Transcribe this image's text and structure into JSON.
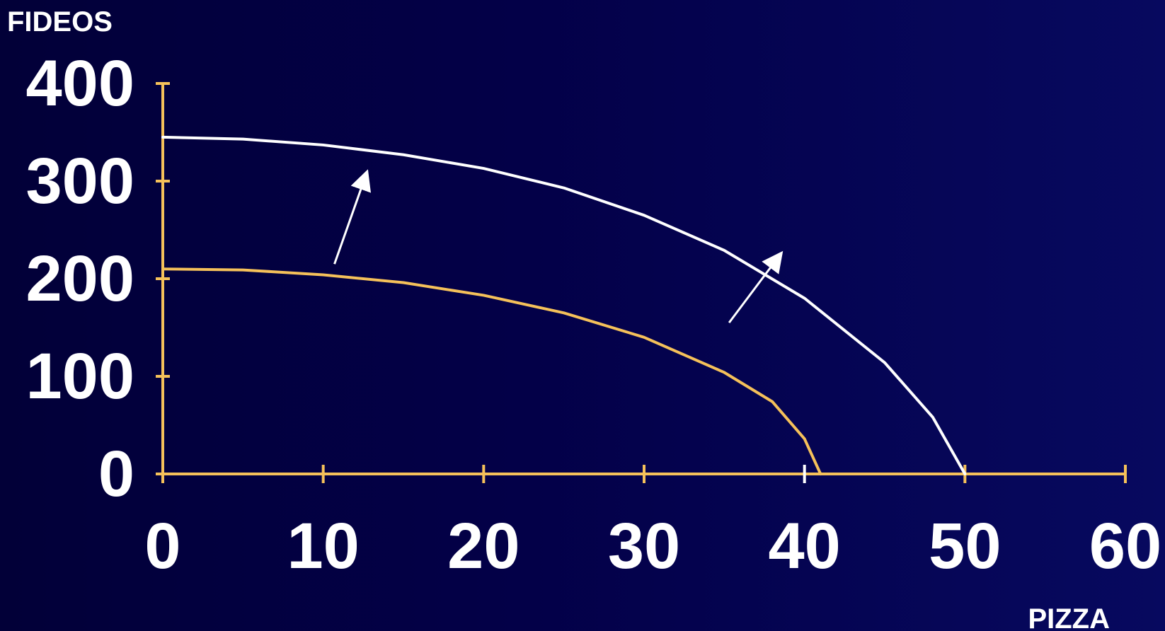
{
  "chart_data": {
    "type": "line",
    "xlabel": "PIZZA",
    "ylabel": "FIDEOS",
    "xlim": [
      0,
      60
    ],
    "ylim": [
      0,
      400
    ],
    "x_ticks": [
      "0",
      "10",
      "20",
      "30",
      "40",
      "50",
      "60"
    ],
    "y_ticks": [
      "0",
      "100",
      "200",
      "300",
      "400"
    ],
    "grid": false,
    "legend": "none",
    "axis_color": "#f5c15a",
    "series": [
      {
        "color": "#f5c15a",
        "points": [
          [
            0,
            210
          ],
          [
            5,
            209
          ],
          [
            10,
            204
          ],
          [
            15,
            196
          ],
          [
            20,
            183
          ],
          [
            25,
            165
          ],
          [
            30,
            140
          ],
          [
            35,
            104
          ],
          [
            38,
            74
          ],
          [
            40,
            36
          ],
          [
            41,
            0
          ]
        ]
      },
      {
        "color": "#ffffff",
        "points": [
          [
            0,
            345
          ],
          [
            5,
            343
          ],
          [
            10,
            337
          ],
          [
            15,
            327
          ],
          [
            20,
            313
          ],
          [
            25,
            293
          ],
          [
            30,
            265
          ],
          [
            35,
            229
          ],
          [
            40,
            180
          ],
          [
            45,
            114
          ],
          [
            48,
            58
          ],
          [
            50,
            0
          ]
        ]
      }
    ],
    "annotations": [
      {
        "type": "arrow",
        "from": [
          10.7,
          215
        ],
        "to": [
          12.7,
          308
        ],
        "color": "#ffffff"
      },
      {
        "type": "arrow",
        "from": [
          35.3,
          155
        ],
        "to": [
          38.5,
          225
        ],
        "color": "#ffffff"
      }
    ]
  }
}
